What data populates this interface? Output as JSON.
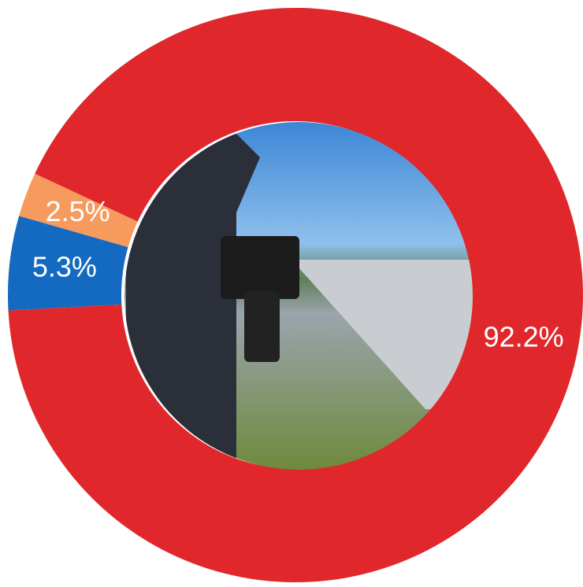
{
  "chart_data": {
    "type": "donut",
    "categories": [
      null,
      null,
      null
    ],
    "values": [
      92.2,
      5.3,
      2.5
    ],
    "value_labels": [
      "92.2%",
      "5.3%",
      "2.5%"
    ],
    "colors": [
      "#e0282c",
      "#1469c0",
      "#f79a5e"
    ]
  }
}
